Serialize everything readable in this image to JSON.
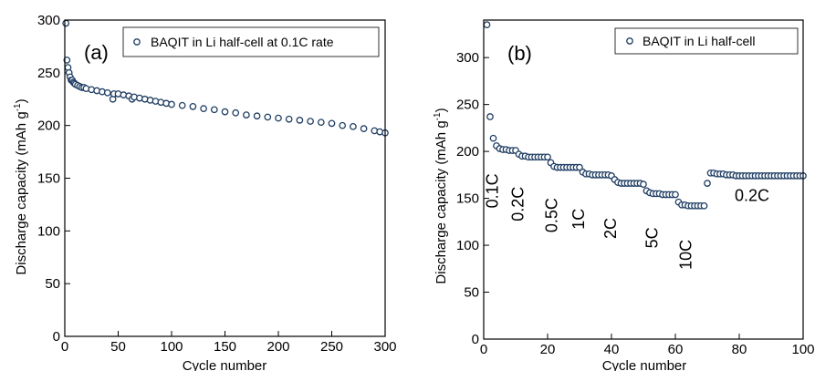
{
  "chart_data": [
    {
      "type": "scatter",
      "panel_label": "(a)",
      "xlabel": "Cycle number",
      "ylabel": "Discharge capacity (mAh g",
      "ylabel_sup": "-1",
      "ylabel_tail": ")",
      "xlim": [
        0,
        300
      ],
      "ylim": [
        0,
        300
      ],
      "xticks": [
        0,
        50,
        100,
        150,
        200,
        250,
        300
      ],
      "yticks": [
        0,
        50,
        100,
        150,
        200,
        250,
        300
      ],
      "grid": false,
      "legend": "top-right",
      "marker_color": "#1f3d63",
      "series": [
        {
          "name": "BAQIT in Li half-cell at 0.1C rate",
          "points": [
            [
              1,
              297
            ],
            [
              2,
              262
            ],
            [
              3,
              255
            ],
            [
              4,
              250
            ],
            [
              5,
              246
            ],
            [
              6,
              243
            ],
            [
              7,
              243
            ],
            [
              8,
              241
            ],
            [
              9,
              240
            ],
            [
              10,
              239
            ],
            [
              12,
              238
            ],
            [
              14,
              237
            ],
            [
              16,
              236
            ],
            [
              18,
              236
            ],
            [
              20,
              235
            ],
            [
              25,
              234
            ],
            [
              30,
              233
            ],
            [
              35,
              232
            ],
            [
              40,
              231
            ],
            [
              45,
              225
            ],
            [
              46,
              230
            ],
            [
              50,
              230
            ],
            [
              55,
              229
            ],
            [
              60,
              228
            ],
            [
              63,
              225
            ],
            [
              65,
              227
            ],
            [
              70,
              226
            ],
            [
              75,
              225
            ],
            [
              80,
              224
            ],
            [
              85,
              223
            ],
            [
              90,
              222
            ],
            [
              95,
              221
            ],
            [
              100,
              220
            ],
            [
              110,
              219
            ],
            [
              120,
              218
            ],
            [
              130,
              216
            ],
            [
              140,
              215
            ],
            [
              150,
              213
            ],
            [
              160,
              212
            ],
            [
              170,
              210
            ],
            [
              180,
              209
            ],
            [
              190,
              208
            ],
            [
              200,
              207
            ],
            [
              210,
              206
            ],
            [
              220,
              205
            ],
            [
              230,
              204
            ],
            [
              240,
              203
            ],
            [
              250,
              202
            ],
            [
              260,
              200
            ],
            [
              270,
              199
            ],
            [
              280,
              197
            ],
            [
              290,
              195
            ],
            [
              295,
              194
            ],
            [
              300,
              193
            ]
          ]
        }
      ]
    },
    {
      "type": "scatter",
      "panel_label": "(b)",
      "xlabel": "Cycle number",
      "ylabel": "Discharge capacity (mAh g",
      "ylabel_sup": "-1",
      "ylabel_tail": ")",
      "xlim": [
        0,
        100
      ],
      "ylim": [
        0,
        340
      ],
      "xticks": [
        0,
        20,
        40,
        60,
        80,
        100
      ],
      "yticks": [
        0,
        50,
        100,
        150,
        200,
        250,
        300
      ],
      "grid": false,
      "legend": "top-right",
      "marker_color": "#1f3d63",
      "series": [
        {
          "name": "BAQIT in Li half-cell",
          "points": [
            [
              1,
              335
            ],
            [
              2,
              237
            ],
            [
              3,
              214
            ],
            [
              4,
              206
            ],
            [
              5,
              203
            ],
            [
              6,
              202
            ],
            [
              7,
              202
            ],
            [
              8,
              201
            ],
            [
              9,
              201
            ],
            [
              10,
              201
            ],
            [
              11,
              197
            ],
            [
              12,
              195
            ],
            [
              13,
              195
            ],
            [
              14,
              194
            ],
            [
              15,
              194
            ],
            [
              16,
              194
            ],
            [
              17,
              194
            ],
            [
              18,
              194
            ],
            [
              19,
              194
            ],
            [
              20,
              194
            ],
            [
              21,
              188
            ],
            [
              22,
              184
            ],
            [
              23,
              183
            ],
            [
              24,
              183
            ],
            [
              25,
              183
            ],
            [
              26,
              183
            ],
            [
              27,
              183
            ],
            [
              28,
              183
            ],
            [
              29,
              183
            ],
            [
              30,
              183
            ],
            [
              31,
              178
            ],
            [
              32,
              176
            ],
            [
              33,
              176
            ],
            [
              34,
              175
            ],
            [
              35,
              175
            ],
            [
              36,
              175
            ],
            [
              37,
              175
            ],
            [
              38,
              175
            ],
            [
              39,
              175
            ],
            [
              40,
              174
            ],
            [
              41,
              170
            ],
            [
              42,
              167
            ],
            [
              43,
              166
            ],
            [
              44,
              166
            ],
            [
              45,
              166
            ],
            [
              46,
              166
            ],
            [
              47,
              166
            ],
            [
              48,
              166
            ],
            [
              49,
              166
            ],
            [
              50,
              165
            ],
            [
              51,
              158
            ],
            [
              52,
              156
            ],
            [
              53,
              155
            ],
            [
              54,
              155
            ],
            [
              55,
              155
            ],
            [
              56,
              154
            ],
            [
              57,
              154
            ],
            [
              58,
              154
            ],
            [
              59,
              154
            ],
            [
              60,
              154
            ],
            [
              61,
              146
            ],
            [
              62,
              143
            ],
            [
              63,
              143
            ],
            [
              64,
              142
            ],
            [
              65,
              142
            ],
            [
              66,
              142
            ],
            [
              67,
              142
            ],
            [
              68,
              142
            ],
            [
              69,
              142
            ],
            [
              70,
              166
            ],
            [
              71,
              177
            ],
            [
              72,
              177
            ],
            [
              73,
              176
            ],
            [
              74,
              176
            ],
            [
              75,
              176
            ],
            [
              76,
              175
            ],
            [
              77,
              175
            ],
            [
              78,
              175
            ],
            [
              79,
              174
            ],
            [
              80,
              174
            ],
            [
              81,
              174
            ],
            [
              82,
              174
            ],
            [
              83,
              174
            ],
            [
              84,
              174
            ],
            [
              85,
              174
            ],
            [
              86,
              174
            ],
            [
              87,
              174
            ],
            [
              88,
              174
            ],
            [
              89,
              174
            ],
            [
              90,
              174
            ],
            [
              91,
              174
            ],
            [
              92,
              174
            ],
            [
              93,
              174
            ],
            [
              94,
              174
            ],
            [
              95,
              174
            ],
            [
              96,
              174
            ],
            [
              97,
              174
            ],
            [
              98,
              174
            ],
            [
              99,
              174
            ],
            [
              100,
              174
            ]
          ]
        }
      ],
      "annotations": [
        {
          "text": "0.1C",
          "x": 4.5,
          "y": 158,
          "rotate": -90
        },
        {
          "text": "0.2C",
          "x": 12.5,
          "y": 144,
          "rotate": -90
        },
        {
          "text": "0.5C",
          "x": 23,
          "y": 132,
          "rotate": -90
        },
        {
          "text": "1C",
          "x": 31.5,
          "y": 128,
          "rotate": -90
        },
        {
          "text": "2C",
          "x": 41.5,
          "y": 118,
          "rotate": -90
        },
        {
          "text": "5C",
          "x": 54.5,
          "y": 108,
          "rotate": -90
        },
        {
          "text": "10C",
          "x": 65,
          "y": 90,
          "rotate": -90
        },
        {
          "text": "0.2C",
          "x": 84,
          "y": 147,
          "rotate": 0
        }
      ]
    }
  ]
}
